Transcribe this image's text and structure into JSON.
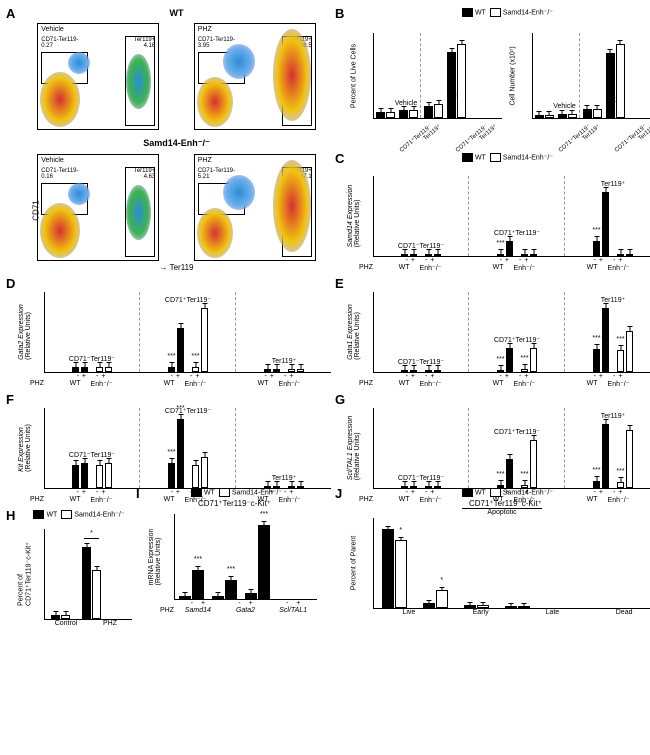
{
  "panels": {
    "A": {
      "rows": [
        {
          "title": "WT",
          "plots": [
            {
              "sub": "Vehicle",
              "g1": "CD71-Ter119-\n0.27",
              "g2": "Ter119+\n4.16"
            },
            {
              "sub": "PHZ",
              "g1": "CD71-Ter119-\n3.95",
              "g2": "Ter119+\n38.5"
            }
          ]
        },
        {
          "title": "Samd14-Enh⁻/⁻",
          "plots": [
            {
              "sub": "Vehicle",
              "g1": "CD71-Ter119-\n0.16",
              "g2": "Ter119+\n4.63"
            },
            {
              "sub": "PHZ",
              "g1": "CD71-Ter119-\n5.21",
              "g2": "Ter119+\n37.1"
            }
          ]
        }
      ],
      "xaxis": "Ter119",
      "yaxis": "CD71"
    },
    "B": {
      "legend": [
        {
          "swatch": "#000000",
          "label": "WT"
        },
        {
          "swatch": "#ffffff",
          "label": "Samd14-Enh⁻/⁻"
        }
      ],
      "charts": [
        {
          "ylabel": "Percent of Live Cells",
          "height": 85,
          "sections": [
            "Vehicle",
            "PHZ"
          ],
          "cats": [
            "CD71⁺Ter119⁻",
            "Ter119⁺",
            "CD71⁺Ter119⁻",
            "Ter119⁺"
          ],
          "bars": [
            [
              3,
              3
            ],
            [
              4,
              4
            ],
            [
              6,
              7
            ],
            [
              32,
              36
            ]
          ]
        },
        {
          "ylabel": "Cell Number (x10⁷)",
          "height": 85,
          "sections": [
            "Vehicle",
            "PHZ"
          ],
          "cats": [
            "CD71⁺Ter119⁻",
            "Ter119⁺",
            "CD71⁺Ter119⁻",
            "Ter119⁺"
          ],
          "bars": [
            [
              3,
              3
            ],
            [
              4,
              4
            ],
            [
              8,
              8
            ],
            [
              60,
              68
            ]
          ]
        }
      ]
    },
    "C": {
      "legend": [
        {
          "swatch": "#000000",
          "label": "WT"
        },
        {
          "swatch": "#ffffff",
          "label": "Samd14-Enh⁻/⁻"
        }
      ],
      "ylabel": "Samd14 Expression\n(Relative Units)",
      "sections": [
        "CD71⁻Ter119⁻",
        "CD71⁺Ter119⁻",
        "Ter119⁺"
      ],
      "bars": [
        [
          3,
          3,
          3,
          3
        ],
        [
          3,
          30,
          3,
          3
        ],
        [
          30,
          125,
          3,
          3
        ]
      ],
      "stars": [
        {
          "i": 5,
          "t": "***"
        },
        {
          "i": 9,
          "t": "***"
        }
      ]
    },
    "D": {
      "ylabel": "Gata2 Expression\n(Relative Units)",
      "sections": [
        "CD71⁻Ter119⁻",
        "CD71⁺Ter119⁻",
        "Ter119⁺"
      ],
      "bars": [
        [
          2,
          2,
          2,
          2
        ],
        [
          2,
          17,
          2,
          25
        ],
        [
          1,
          1,
          1,
          1
        ]
      ],
      "stars": [
        {
          "i": 5,
          "t": "***"
        },
        {
          "i": 7,
          "t": "***"
        }
      ]
    },
    "E": {
      "ylabel": "Gata1 Expression\n(Relative Units)",
      "sections": [
        "CD71⁻Ter119⁻",
        "CD71⁺Ter119⁻",
        "Ter119⁺"
      ],
      "bars": [
        [
          2,
          2,
          2,
          2
        ],
        [
          5,
          62,
          8,
          62
        ],
        [
          58,
          162,
          55,
          105
        ]
      ],
      "stars": [
        {
          "i": 5,
          "t": "***"
        },
        {
          "i": 7,
          "t": "***"
        },
        {
          "i": 9,
          "t": "***"
        },
        {
          "i": 11,
          "t": "***"
        }
      ]
    },
    "F": {
      "ylabel": "Kit Expression\n(Relative Units)",
      "sections": [
        "CD71⁻Ter119⁻",
        "CD71⁺Ter119⁻",
        "Ter119⁺"
      ],
      "bars": [
        [
          85,
          95,
          85,
          95
        ],
        [
          95,
          260,
          85,
          115
        ],
        [
          5,
          8,
          5,
          8
        ]
      ],
      "ymax": 300,
      "stars": [
        {
          "i": 5,
          "t": "***"
        },
        {
          "i": 6,
          "t": "***",
          "bridge": true
        }
      ]
    },
    "G": {
      "ylabel": "Scl/TAL1 Expression\n(Relative Units)",
      "sections": [
        "CD71⁻Ter119⁻",
        "CD71⁺Ter119⁻",
        "Ter119⁺"
      ],
      "bars": [
        [
          2,
          2,
          2,
          2
        ],
        [
          8,
          92,
          8,
          150
        ],
        [
          22,
          200,
          18,
          180
        ]
      ],
      "stars": [
        {
          "i": 5,
          "t": "***"
        },
        {
          "i": 7,
          "t": "***"
        },
        {
          "i": 9,
          "t": "***"
        },
        {
          "i": 11,
          "t": "***"
        }
      ]
    },
    "H": {
      "legend": [
        {
          "swatch": "#000000",
          "label": "WT"
        },
        {
          "swatch": "#ffffff",
          "label": "Samd14-Enh⁻/⁻"
        }
      ],
      "ylabel": "Percent of\nCD71⁺Ter119⁻c-Kit⁺",
      "cats": [
        "Control",
        "PHZ"
      ],
      "bars": [
        [
          4,
          4
        ],
        [
          80,
          55
        ]
      ],
      "stars": [
        {
          "i": 3,
          "t": "*",
          "bridge": true
        }
      ]
    },
    "I": {
      "legend": [
        {
          "swatch": "#000000",
          "label": "WT"
        },
        {
          "swatch": "#ffffff",
          "label": "Samd14-Enh⁻/⁻"
        }
      ],
      "title": "CD71⁺Ter119⁻c-Kit⁺",
      "ylabel": "mRNA Expression\n(Relative Units)",
      "cats": [
        "Samd14",
        "Gata2",
        "Scl/TAL1"
      ],
      "bars": [
        [
          8,
          68,
          4
        ],
        [
          8,
          45,
          8
        ],
        [
          13,
          175,
          15
        ]
      ],
      "phz": [
        "-",
        "+",
        "-",
        "+",
        "-",
        "+"
      ],
      "stars": [
        {
          "i": 1,
          "t": "***"
        },
        {
          "i": 3,
          "t": "***"
        },
        {
          "i": 5,
          "t": "***"
        }
      ]
    },
    "J": {
      "legend": [
        {
          "swatch": "#000000",
          "label": "WT"
        },
        {
          "swatch": "#ffffff",
          "label": "Samd14-Enh⁻/⁻"
        }
      ],
      "title": "CD71⁺Ter119⁻c-Kit⁺",
      "ylabel": "Percent of Parent",
      "sections": [
        "",
        "Apoptotic",
        ""
      ],
      "cats": [
        "Live",
        "Early",
        "Late",
        "Dead"
      ],
      "bars": [
        [
          88,
          76
        ],
        [
          6,
          20
        ],
        [
          3,
          3
        ],
        [
          2,
          2
        ]
      ],
      "stars": [
        {
          "i": 1,
          "t": "*"
        },
        {
          "i": 3,
          "t": "*"
        }
      ]
    }
  },
  "colors": {
    "black": "#000000",
    "white": "#ffffff"
  }
}
